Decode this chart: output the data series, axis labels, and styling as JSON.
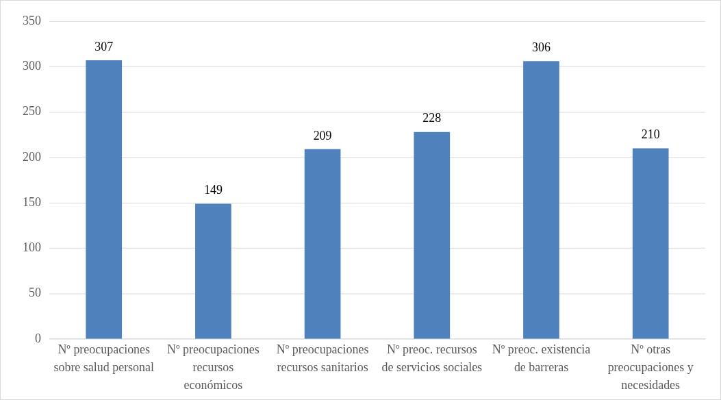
{
  "chart_data": {
    "type": "bar",
    "categories": [
      "Nº preocupaciones sobre salud personal",
      "Nº preocupaciones recursos económicos",
      "Nº preocupaciones recursos sanitarios",
      "Nº preoc. recursos de servicios sociales",
      "Nº preoc. existencia de barreras",
      "Nº otras preocupaciones y necesidades"
    ],
    "values": [
      307,
      149,
      209,
      228,
      306,
      210
    ],
    "color": "#4f81bd",
    "ylim": [
      0,
      350
    ],
    "yticks": [
      0,
      50,
      100,
      150,
      200,
      250,
      300,
      350
    ],
    "grid": "y",
    "data_labels": true,
    "legend": false
  }
}
